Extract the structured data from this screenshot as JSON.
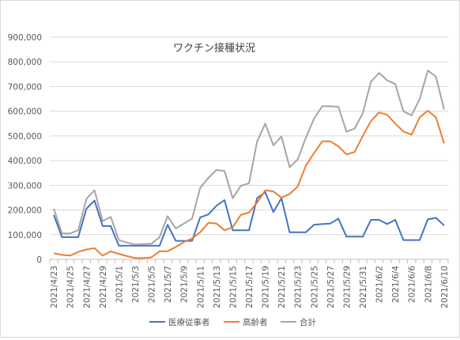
{
  "chart_data": {
    "type": "line",
    "title": "ワクチン接種状況",
    "ylim": [
      0,
      900000
    ],
    "yticks": [
      "0",
      "100,000",
      "200,000",
      "300,000",
      "400,000",
      "500,000",
      "600,000",
      "700,000",
      "800,000",
      "900,000"
    ],
    "ytick_values": [
      0,
      100000,
      200000,
      300000,
      400000,
      500000,
      600000,
      700000,
      800000,
      900000
    ],
    "x": [
      "2021/4/23",
      "2021/4/24",
      "2021/4/25",
      "2021/4/26",
      "2021/4/27",
      "2021/4/28",
      "2021/4/29",
      "2021/4/30",
      "2021/5/1",
      "2021/5/2",
      "2021/5/3",
      "2021/5/4",
      "2021/5/5",
      "2021/5/6",
      "2021/5/7",
      "2021/5/8",
      "2021/5/9",
      "2021/5/10",
      "2021/5/11",
      "2021/5/12",
      "2021/5/13",
      "2021/5/14",
      "2021/5/15",
      "2021/5/16",
      "2021/5/17",
      "2021/5/18",
      "2021/5/19",
      "2021/5/20",
      "2021/5/21",
      "2021/5/22",
      "2021/5/23",
      "2021/5/24",
      "2021/5/25",
      "2021/5/26",
      "2021/5/27",
      "2021/5/28",
      "2021/5/29",
      "2021/5/30",
      "2021/5/31",
      "2021/6/1",
      "2021/6/2",
      "2021/6/3",
      "2021/6/4",
      "2021/6/5",
      "2021/6/6",
      "2021/6/7",
      "2021/6/8",
      "2021/6/9",
      "2021/6/10"
    ],
    "xtick_labels": [
      "2021/4/23",
      "2021/4/25",
      "2021/4/27",
      "2021/4/29",
      "2021/5/1",
      "2021/5/3",
      "2021/5/5",
      "2021/5/7",
      "2021/5/9",
      "2021/5/11",
      "2021/5/13",
      "2021/5/15",
      "2021/5/17",
      "2021/5/19",
      "2021/5/21",
      "2021/5/23",
      "2021/5/25",
      "2021/5/27",
      "2021/5/29",
      "2021/5/31",
      "2021/6/2",
      "2021/6/4",
      "2021/6/6",
      "2021/6/8",
      "2021/6/10"
    ],
    "series": [
      {
        "name": "医療従事者",
        "color": "#4472c4",
        "values": [
          180000,
          90000,
          90000,
          90000,
          205000,
          238000,
          135000,
          135000,
          55000,
          55000,
          55000,
          55000,
          55000,
          55000,
          140000,
          75000,
          75000,
          75000,
          170000,
          182000,
          217000,
          240000,
          118000,
          118000,
          118000,
          248000,
          272000,
          192000,
          248000,
          110000,
          110000,
          110000,
          140000,
          143000,
          145000,
          165000,
          92000,
          92000,
          92000,
          160000,
          160000,
          143000,
          160000,
          78000,
          78000,
          78000,
          162000,
          168000,
          137000
        ]
      },
      {
        "name": "高齢者",
        "color": "#ed7d31",
        "values": [
          25000,
          18000,
          15000,
          30000,
          40000,
          45000,
          15000,
          32000,
          22000,
          13000,
          5000,
          5000,
          8000,
          33000,
          33000,
          50000,
          70000,
          85000,
          110000,
          148000,
          145000,
          118000,
          130000,
          180000,
          190000,
          230000,
          280000,
          275000,
          250000,
          265000,
          295000,
          380000,
          430000,
          478000,
          478000,
          458000,
          425000,
          435000,
          500000,
          560000,
          595000,
          585000,
          550000,
          518000,
          505000,
          575000,
          602000,
          575000,
          470000
        ]
      },
      {
        "name": "合計",
        "color": "#a5a5a5",
        "values": [
          205000,
          105000,
          105000,
          118000,
          245000,
          280000,
          155000,
          172000,
          78000,
          68000,
          60000,
          62000,
          63000,
          90000,
          175000,
          125000,
          145000,
          165000,
          290000,
          330000,
          362000,
          358000,
          248000,
          298000,
          308000,
          478000,
          550000,
          462000,
          498000,
          373000,
          405000,
          493000,
          570000,
          620000,
          620000,
          618000,
          517000,
          530000,
          592000,
          720000,
          755000,
          725000,
          710000,
          600000,
          583000,
          650000,
          765000,
          740000,
          607000
        ]
      }
    ]
  }
}
